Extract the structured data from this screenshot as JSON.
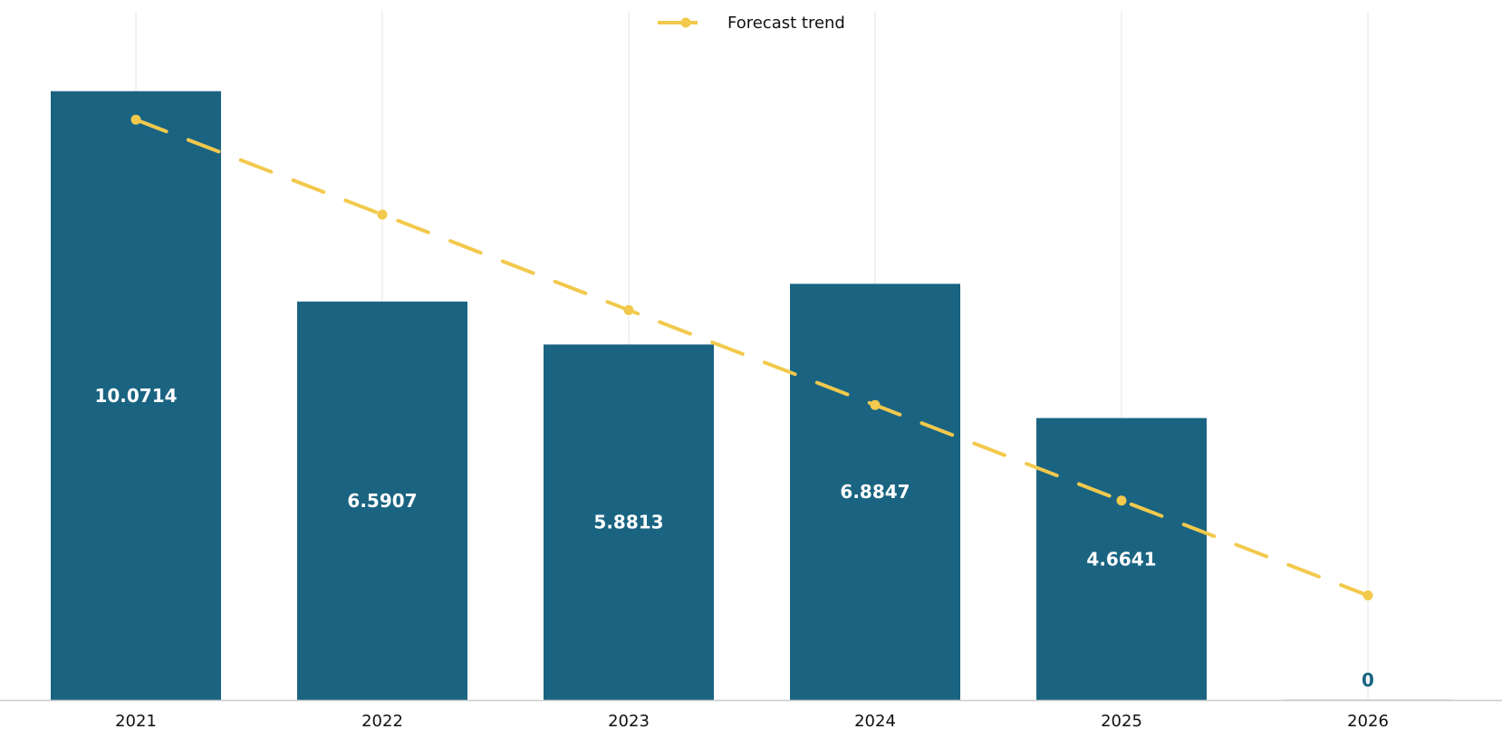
{
  "chart_data": {
    "type": "bar",
    "categories": [
      "2021",
      "2022",
      "2023",
      "2024",
      "2025",
      "2026"
    ],
    "values": [
      10.0714,
      6.5907,
      5.8813,
      6.8847,
      4.6641,
      0
    ],
    "value_labels": [
      "10.0714",
      "6.5907",
      "5.8813",
      "6.8847",
      "4.6641",
      "0"
    ],
    "trend": {
      "name": "Forecast trend",
      "values": [
        9.6,
        8.03,
        6.45,
        4.88,
        3.3,
        1.73
      ]
    },
    "ylim": [
      0,
      11.4
    ],
    "grid": "vertical",
    "legend": "top-center",
    "title": "",
    "xlabel": "",
    "ylabel": ""
  },
  "colors": {
    "bar": "#1a6482",
    "trend": "#f2c94c",
    "bar_label_inside": "#ffffff",
    "bar_label_outside": "#1a6482",
    "grid": "#e6e6e6",
    "axis": "#cccccc"
  },
  "legend": {
    "label": "Forecast trend"
  }
}
